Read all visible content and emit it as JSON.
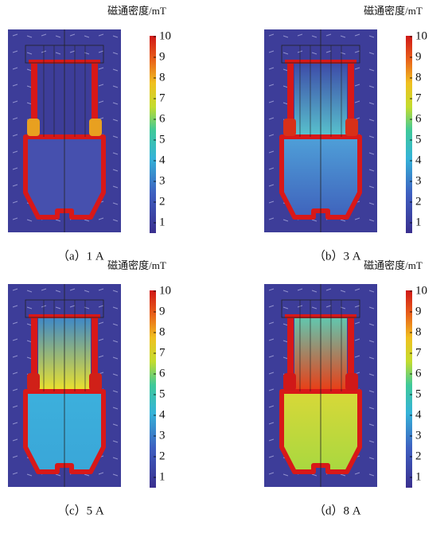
{
  "panels": [
    {
      "colorbar_title": "磁通密度/mT",
      "colorbar_ticks": [
        1,
        2,
        3,
        4,
        5,
        6,
        7,
        8,
        9,
        10
      ],
      "caption": "（a）1 A"
    },
    {
      "colorbar_title": "磁通密度/mT",
      "colorbar_ticks": [
        1,
        2,
        3,
        4,
        5,
        6,
        7,
        8,
        9,
        10
      ],
      "caption": "（b）3 A"
    },
    {
      "colorbar_title": "磁通密度/mT",
      "colorbar_ticks": [
        1,
        2,
        3,
        4,
        5,
        6,
        7,
        8,
        9,
        10
      ],
      "caption": "（c）5 A"
    },
    {
      "colorbar_title": "磁通密度/mT",
      "colorbar_ticks": [
        1,
        2,
        3,
        4,
        5,
        6,
        7,
        8,
        9,
        10
      ],
      "caption": "（d）8 A"
    }
  ]
}
